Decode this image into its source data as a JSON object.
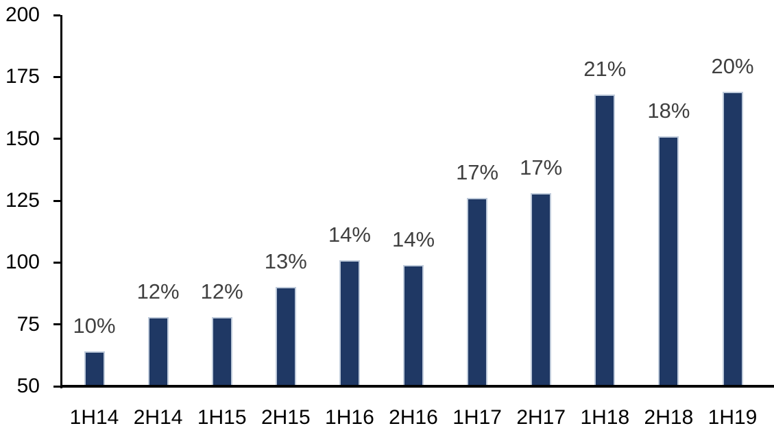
{
  "chart_data": {
    "type": "bar",
    "categories": [
      "1H14",
      "2H14",
      "1H15",
      "2H15",
      "1H16",
      "2H16",
      "1H17",
      "2H17",
      "1H18",
      "2H18",
      "1H19"
    ],
    "values": [
      64,
      78,
      78,
      90,
      101,
      99,
      126,
      128,
      168,
      151,
      169
    ],
    "bar_labels": [
      "10%",
      "12%",
      "12%",
      "13%",
      "14%",
      "14%",
      "17%",
      "17%",
      "21%",
      "18%",
      "20%"
    ],
    "title": "",
    "xlabel": "",
    "ylabel": "",
    "ylim": [
      50,
      200
    ],
    "yticks": [
      50,
      75,
      100,
      125,
      150,
      175,
      200
    ],
    "grid": false,
    "legend": false,
    "colors": {
      "bar_fill": "#1f3864",
      "bar_border": "#bfcbdb",
      "value_label": "#404040",
      "axis_text": "#000000",
      "axis_line": "#000000",
      "background": "#ffffff"
    }
  }
}
